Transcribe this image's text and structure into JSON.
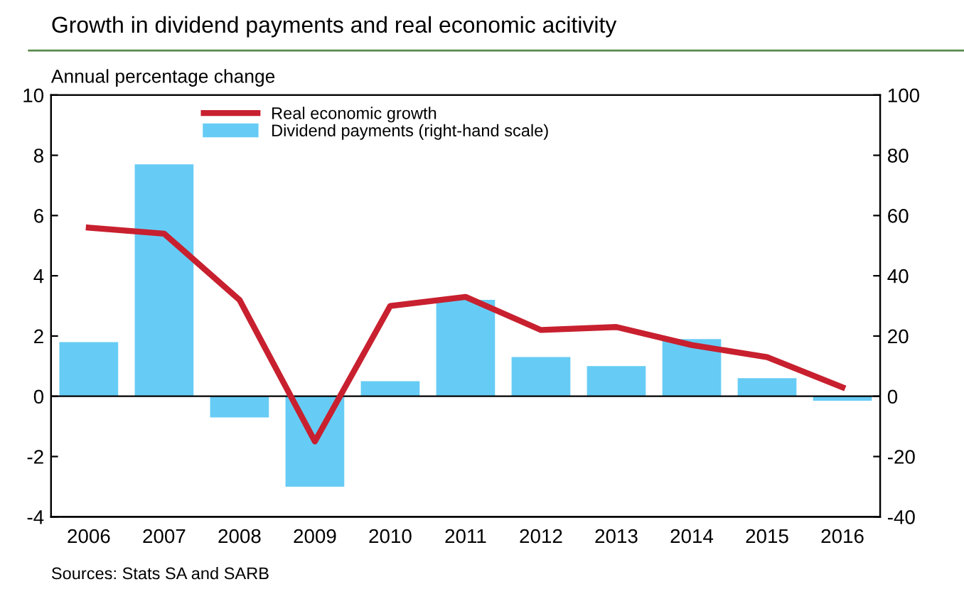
{
  "chart_data": {
    "type": "bar",
    "title": "Growth in dividend payments and real economic acitivity",
    "ylabel": "Annual percentage change",
    "categories": [
      "2006",
      "2007",
      "2008",
      "2009",
      "2010",
      "2011",
      "2012",
      "2013",
      "2014",
      "2015",
      "2016"
    ],
    "series": [
      {
        "name": "Real economic growth",
        "type": "line",
        "color": "#c8202f",
        "values": [
          5.6,
          5.4,
          3.2,
          -1.5,
          3.0,
          3.3,
          2.2,
          2.3,
          1.7,
          1.3,
          0.3
        ]
      },
      {
        "name": "Dividend payments (right-hand scale)",
        "axis": "y2",
        "color": "#66ccf5",
        "values": [
          18,
          77,
          -7,
          -30,
          5,
          32,
          13,
          10,
          19,
          6,
          -1.5
        ]
      }
    ],
    "ylim": [
      -4,
      10
    ],
    "yticks": [
      -4,
      -2,
      0,
      2,
      4,
      6,
      8,
      10
    ],
    "y2lim": [
      -40,
      100
    ],
    "y2ticks": [
      -40,
      -20,
      0,
      20,
      40,
      60,
      80,
      100
    ],
    "ref_lines": [
      {
        "axis": "y",
        "value": 0,
        "color": "#000000"
      }
    ],
    "legend": "top left",
    "grid": false,
    "annotations": [
      "Sources: Stats SA and SARB"
    ]
  }
}
